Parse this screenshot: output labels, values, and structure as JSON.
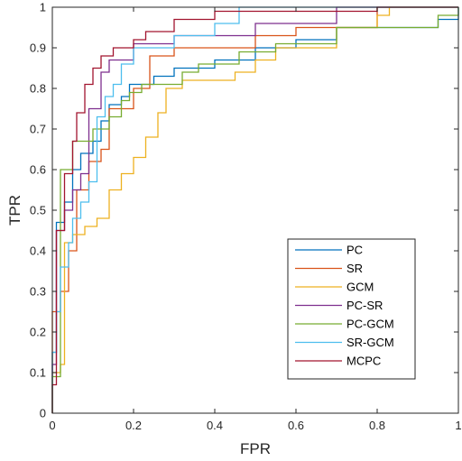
{
  "chart_data": {
    "type": "line",
    "title": "",
    "xlabel": "FPR",
    "ylabel": "TPR",
    "xlim": [
      0,
      1
    ],
    "ylim": [
      0,
      1
    ],
    "xticks": [
      "0",
      "0.2",
      "0.4",
      "0.6",
      "0.8",
      "1"
    ],
    "yticks": [
      "0",
      "0.1",
      "0.2",
      "0.3",
      "0.4",
      "0.5",
      "0.6",
      "0.7",
      "0.8",
      "0.9",
      "1"
    ],
    "grid": false,
    "legend_position": "bottom-right",
    "series": [
      {
        "name": "PC",
        "color": "#0072BD",
        "points": [
          [
            0,
            0
          ],
          [
            0,
            0.15
          ],
          [
            0.01,
            0.15
          ],
          [
            0.01,
            0.47
          ],
          [
            0.03,
            0.47
          ],
          [
            0.03,
            0.52
          ],
          [
            0.05,
            0.52
          ],
          [
            0.05,
            0.6
          ],
          [
            0.07,
            0.6
          ],
          [
            0.07,
            0.64
          ],
          [
            0.1,
            0.64
          ],
          [
            0.1,
            0.67
          ],
          [
            0.12,
            0.67
          ],
          [
            0.12,
            0.72
          ],
          [
            0.14,
            0.72
          ],
          [
            0.14,
            0.76
          ],
          [
            0.17,
            0.76
          ],
          [
            0.17,
            0.78
          ],
          [
            0.19,
            0.78
          ],
          [
            0.19,
            0.81
          ],
          [
            0.25,
            0.81
          ],
          [
            0.25,
            0.83
          ],
          [
            0.3,
            0.83
          ],
          [
            0.3,
            0.85
          ],
          [
            0.4,
            0.85
          ],
          [
            0.4,
            0.87
          ],
          [
            0.5,
            0.87
          ],
          [
            0.5,
            0.9
          ],
          [
            0.6,
            0.9
          ],
          [
            0.6,
            0.92
          ],
          [
            0.7,
            0.92
          ],
          [
            0.7,
            0.95
          ],
          [
            0.95,
            0.95
          ],
          [
            0.95,
            0.97
          ],
          [
            1,
            0.97
          ],
          [
            1,
            1
          ]
        ]
      },
      {
        "name": "SR",
        "color": "#D95319",
        "points": [
          [
            0,
            0
          ],
          [
            0,
            0.25
          ],
          [
            0.02,
            0.25
          ],
          [
            0.02,
            0.3
          ],
          [
            0.04,
            0.3
          ],
          [
            0.04,
            0.4
          ],
          [
            0.06,
            0.4
          ],
          [
            0.06,
            0.55
          ],
          [
            0.09,
            0.55
          ],
          [
            0.09,
            0.62
          ],
          [
            0.12,
            0.62
          ],
          [
            0.12,
            0.65
          ],
          [
            0.14,
            0.65
          ],
          [
            0.14,
            0.75
          ],
          [
            0.2,
            0.75
          ],
          [
            0.2,
            0.8
          ],
          [
            0.24,
            0.8
          ],
          [
            0.24,
            0.88
          ],
          [
            0.3,
            0.88
          ],
          [
            0.3,
            0.9
          ],
          [
            0.5,
            0.9
          ],
          [
            0.5,
            0.93
          ],
          [
            0.6,
            0.93
          ],
          [
            0.6,
            0.95
          ],
          [
            0.8,
            0.95
          ],
          [
            0.8,
            1
          ],
          [
            1,
            1
          ]
        ]
      },
      {
        "name": "GCM",
        "color": "#EDB120",
        "points": [
          [
            0,
            0
          ],
          [
            0,
            0.1
          ],
          [
            0.02,
            0.1
          ],
          [
            0.02,
            0.12
          ],
          [
            0.03,
            0.12
          ],
          [
            0.03,
            0.42
          ],
          [
            0.05,
            0.42
          ],
          [
            0.05,
            0.44
          ],
          [
            0.08,
            0.44
          ],
          [
            0.08,
            0.46
          ],
          [
            0.11,
            0.46
          ],
          [
            0.11,
            0.48
          ],
          [
            0.14,
            0.48
          ],
          [
            0.14,
            0.55
          ],
          [
            0.17,
            0.55
          ],
          [
            0.17,
            0.59
          ],
          [
            0.2,
            0.59
          ],
          [
            0.2,
            0.63
          ],
          [
            0.23,
            0.63
          ],
          [
            0.23,
            0.68
          ],
          [
            0.26,
            0.68
          ],
          [
            0.26,
            0.74
          ],
          [
            0.28,
            0.74
          ],
          [
            0.28,
            0.8
          ],
          [
            0.32,
            0.8
          ],
          [
            0.32,
            0.82
          ],
          [
            0.45,
            0.82
          ],
          [
            0.45,
            0.84
          ],
          [
            0.5,
            0.84
          ],
          [
            0.5,
            0.87
          ],
          [
            0.55,
            0.87
          ],
          [
            0.55,
            0.9
          ],
          [
            0.7,
            0.9
          ],
          [
            0.7,
            0.95
          ],
          [
            0.8,
            0.95
          ],
          [
            0.8,
            0.98
          ],
          [
            0.83,
            0.98
          ],
          [
            0.83,
            1
          ],
          [
            1,
            1
          ]
        ]
      },
      {
        "name": "PC-SR",
        "color": "#7E2F8E",
        "points": [
          [
            0,
            0
          ],
          [
            0,
            0.12
          ],
          [
            0.01,
            0.12
          ],
          [
            0.01,
            0.45
          ],
          [
            0.03,
            0.45
          ],
          [
            0.03,
            0.5
          ],
          [
            0.05,
            0.5
          ],
          [
            0.05,
            0.55
          ],
          [
            0.07,
            0.55
          ],
          [
            0.07,
            0.59
          ],
          [
            0.09,
            0.59
          ],
          [
            0.09,
            0.75
          ],
          [
            0.12,
            0.75
          ],
          [
            0.12,
            0.84
          ],
          [
            0.14,
            0.84
          ],
          [
            0.14,
            0.87
          ],
          [
            0.2,
            0.87
          ],
          [
            0.2,
            0.91
          ],
          [
            0.3,
            0.91
          ],
          [
            0.3,
            0.93
          ],
          [
            0.5,
            0.93
          ],
          [
            0.5,
            0.96
          ],
          [
            0.7,
            0.96
          ],
          [
            0.7,
            1
          ],
          [
            1,
            1
          ]
        ]
      },
      {
        "name": "PC-GCM",
        "color": "#77AC30",
        "points": [
          [
            0,
            0
          ],
          [
            0,
            0.09
          ],
          [
            0.02,
            0.09
          ],
          [
            0.02,
            0.6
          ],
          [
            0.05,
            0.6
          ],
          [
            0.05,
            0.67
          ],
          [
            0.1,
            0.67
          ],
          [
            0.1,
            0.7
          ],
          [
            0.14,
            0.7
          ],
          [
            0.14,
            0.73
          ],
          [
            0.17,
            0.73
          ],
          [
            0.17,
            0.77
          ],
          [
            0.19,
            0.77
          ],
          [
            0.19,
            0.79
          ],
          [
            0.22,
            0.79
          ],
          [
            0.22,
            0.81
          ],
          [
            0.32,
            0.81
          ],
          [
            0.32,
            0.84
          ],
          [
            0.36,
            0.84
          ],
          [
            0.36,
            0.86
          ],
          [
            0.46,
            0.86
          ],
          [
            0.46,
            0.89
          ],
          [
            0.55,
            0.89
          ],
          [
            0.55,
            0.91
          ],
          [
            0.7,
            0.91
          ],
          [
            0.7,
            0.95
          ],
          [
            0.95,
            0.95
          ],
          [
            0.95,
            0.98
          ],
          [
            1,
            0.98
          ],
          [
            1,
            1
          ]
        ]
      },
      {
        "name": "SR-GCM",
        "color": "#4DBEEE",
        "points": [
          [
            0,
            0
          ],
          [
            0,
            0.15
          ],
          [
            0.01,
            0.15
          ],
          [
            0.01,
            0.25
          ],
          [
            0.02,
            0.25
          ],
          [
            0.02,
            0.36
          ],
          [
            0.04,
            0.36
          ],
          [
            0.04,
            0.42
          ],
          [
            0.05,
            0.42
          ],
          [
            0.05,
            0.48
          ],
          [
            0.07,
            0.48
          ],
          [
            0.07,
            0.52
          ],
          [
            0.09,
            0.52
          ],
          [
            0.09,
            0.57
          ],
          [
            0.11,
            0.57
          ],
          [
            0.11,
            0.73
          ],
          [
            0.13,
            0.73
          ],
          [
            0.13,
            0.78
          ],
          [
            0.15,
            0.78
          ],
          [
            0.15,
            0.81
          ],
          [
            0.17,
            0.81
          ],
          [
            0.17,
            0.86
          ],
          [
            0.2,
            0.86
          ],
          [
            0.2,
            0.9
          ],
          [
            0.3,
            0.9
          ],
          [
            0.3,
            0.93
          ],
          [
            0.4,
            0.93
          ],
          [
            0.4,
            0.96
          ],
          [
            0.46,
            0.96
          ],
          [
            0.46,
            1
          ],
          [
            1,
            1
          ]
        ]
      },
      {
        "name": "MCPC",
        "color": "#A2142F",
        "points": [
          [
            0,
            0
          ],
          [
            0,
            0.07
          ],
          [
            0.01,
            0.07
          ],
          [
            0.01,
            0.45
          ],
          [
            0.03,
            0.45
          ],
          [
            0.03,
            0.59
          ],
          [
            0.05,
            0.59
          ],
          [
            0.05,
            0.67
          ],
          [
            0.06,
            0.67
          ],
          [
            0.06,
            0.74
          ],
          [
            0.08,
            0.74
          ],
          [
            0.08,
            0.81
          ],
          [
            0.1,
            0.81
          ],
          [
            0.1,
            0.85
          ],
          [
            0.12,
            0.85
          ],
          [
            0.12,
            0.88
          ],
          [
            0.15,
            0.88
          ],
          [
            0.15,
            0.9
          ],
          [
            0.2,
            0.9
          ],
          [
            0.2,
            0.92
          ],
          [
            0.23,
            0.92
          ],
          [
            0.23,
            0.94
          ],
          [
            0.3,
            0.94
          ],
          [
            0.3,
            0.97
          ],
          [
            0.4,
            0.97
          ],
          [
            0.4,
            0.99
          ],
          [
            0.8,
            0.99
          ],
          [
            0.8,
            1
          ],
          [
            1,
            1
          ]
        ]
      }
    ]
  }
}
